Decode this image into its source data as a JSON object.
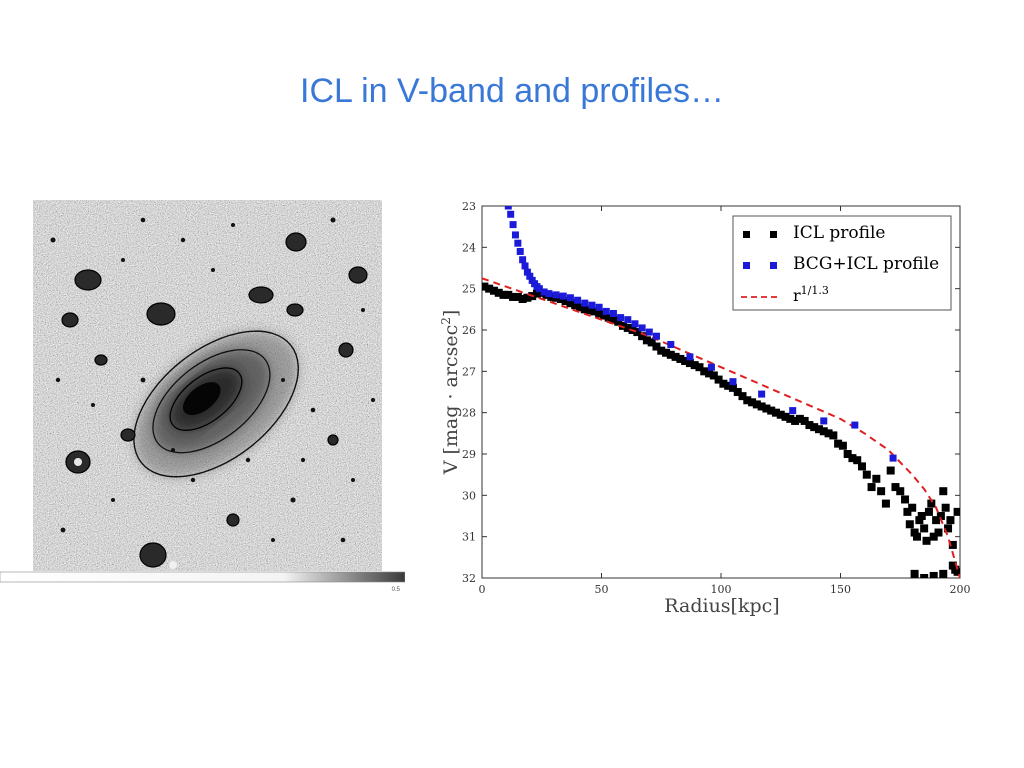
{
  "slide": {
    "title": "ICL in V-band and profiles…"
  },
  "image_panel": {
    "colorbar_tick": "0.5"
  },
  "colors": {
    "title": "#3a78d8",
    "icl": "#000000",
    "bcg": "#1a1ad8",
    "fit": "#e02020"
  },
  "chart_data": {
    "type": "scatter",
    "title": "",
    "xlabel": "Radius[kpc]",
    "ylabel": "V [mag · arcsec²]",
    "xlim": [
      0,
      200
    ],
    "ylim": [
      23,
      32
    ],
    "y_inverted": true,
    "xticks": [
      "0",
      "50",
      "100",
      "150",
      "200"
    ],
    "yticks": [
      "23",
      "24",
      "25",
      "26",
      "27",
      "28",
      "29",
      "30",
      "31",
      "32"
    ],
    "legend_position": "top-right",
    "series": [
      {
        "name": "ICL profile",
        "kind": "scatter",
        "color": "#000000",
        "x": [
          1,
          3,
          5,
          7,
          9,
          11,
          13,
          15,
          17,
          19,
          21,
          23,
          25,
          27,
          29,
          31,
          33,
          35,
          37,
          39,
          41,
          43,
          45,
          47,
          49,
          51,
          53,
          55,
          57,
          59,
          61,
          63,
          65,
          67,
          69,
          71,
          73,
          75,
          77,
          79,
          81,
          83,
          85,
          87,
          89,
          91,
          93,
          95,
          97,
          99,
          101,
          103,
          105,
          107,
          109,
          111,
          113,
          115,
          117,
          119,
          121,
          123,
          125,
          127,
          129,
          131,
          133,
          135,
          137,
          139,
          141,
          143,
          145,
          147,
          149,
          151,
          153,
          155,
          157,
          159,
          161,
          163,
          165,
          167,
          169,
          171,
          173,
          175,
          177,
          178,
          179,
          180,
          181,
          182,
          183,
          184,
          185,
          186,
          187,
          188,
          189,
          190,
          191,
          192,
          193,
          194,
          195,
          196,
          197,
          198,
          199
        ],
        "y": [
          24.95,
          25.0,
          25.05,
          25.1,
          25.15,
          25.15,
          25.2,
          25.2,
          25.25,
          25.22,
          25.18,
          25.12,
          25.1,
          25.15,
          25.2,
          25.22,
          25.25,
          25.3,
          25.35,
          25.4,
          25.45,
          25.5,
          25.52,
          25.55,
          25.6,
          25.65,
          25.7,
          25.75,
          25.8,
          25.9,
          25.95,
          26.0,
          26.05,
          26.15,
          26.25,
          26.3,
          26.4,
          26.5,
          26.55,
          26.6,
          26.65,
          26.7,
          26.75,
          26.8,
          26.85,
          26.9,
          27.0,
          27.05,
          27.1,
          27.2,
          27.3,
          27.35,
          27.4,
          27.5,
          27.6,
          27.7,
          27.75,
          27.8,
          27.85,
          27.9,
          27.95,
          28.0,
          28.05,
          28.1,
          28.15,
          28.2,
          28.15,
          28.2,
          28.3,
          28.35,
          28.4,
          28.45,
          28.5,
          28.55,
          28.75,
          28.8,
          29.0,
          29.1,
          29.15,
          29.3,
          29.5,
          29.8,
          29.6,
          29.9,
          30.2,
          29.4,
          29.8,
          29.9,
          30.1,
          30.4,
          30.7,
          30.3,
          30.9,
          31.0,
          30.6,
          30.5,
          30.8,
          31.1,
          30.4,
          30.2,
          31.0,
          30.6,
          30.9,
          30.5,
          29.9,
          30.3,
          30.8,
          30.6,
          31.2,
          31.8,
          30.4
        ],
        "x_extra": [
          181,
          185,
          189,
          193,
          197,
          199
        ],
        "y_extra": [
          31.9,
          32.0,
          31.95,
          31.9,
          31.7,
          31.85
        ]
      },
      {
        "name": "BCG+ICL profile",
        "kind": "scatter",
        "color": "#1a1ad8",
        "x": [
          11,
          12,
          13,
          14,
          15,
          16,
          17,
          18,
          19,
          20,
          21,
          22,
          23,
          24,
          26,
          28,
          31,
          34,
          37,
          40,
          43,
          46,
          49,
          52,
          55,
          58,
          61,
          64,
          67,
          70,
          73,
          79,
          87,
          96,
          105,
          117,
          130,
          143,
          156,
          172
        ],
        "y": [
          23.0,
          23.2,
          23.45,
          23.7,
          23.9,
          24.1,
          24.3,
          24.45,
          24.6,
          24.7,
          24.8,
          24.88,
          24.95,
          25.0,
          25.08,
          25.12,
          25.15,
          25.18,
          25.22,
          25.28,
          25.35,
          25.4,
          25.45,
          25.55,
          25.6,
          25.7,
          25.75,
          25.85,
          25.95,
          26.05,
          26.15,
          26.35,
          26.65,
          26.9,
          27.25,
          27.55,
          27.95,
          28.2,
          28.3,
          29.1
        ]
      },
      {
        "name": "r^1/1.3",
        "kind": "line",
        "color": "#e02020",
        "x": [
          0,
          10,
          20,
          30,
          40,
          50,
          60,
          70,
          80,
          90,
          100,
          110,
          120,
          130,
          140,
          150,
          160,
          170,
          180,
          185,
          190,
          195,
          198,
          200
        ],
        "y": [
          24.75,
          24.95,
          25.15,
          25.35,
          25.55,
          25.75,
          25.95,
          26.15,
          26.4,
          26.65,
          26.9,
          27.15,
          27.4,
          27.65,
          27.9,
          28.15,
          28.5,
          28.9,
          29.5,
          29.85,
          30.3,
          31.0,
          31.6,
          32.0
        ]
      }
    ]
  }
}
